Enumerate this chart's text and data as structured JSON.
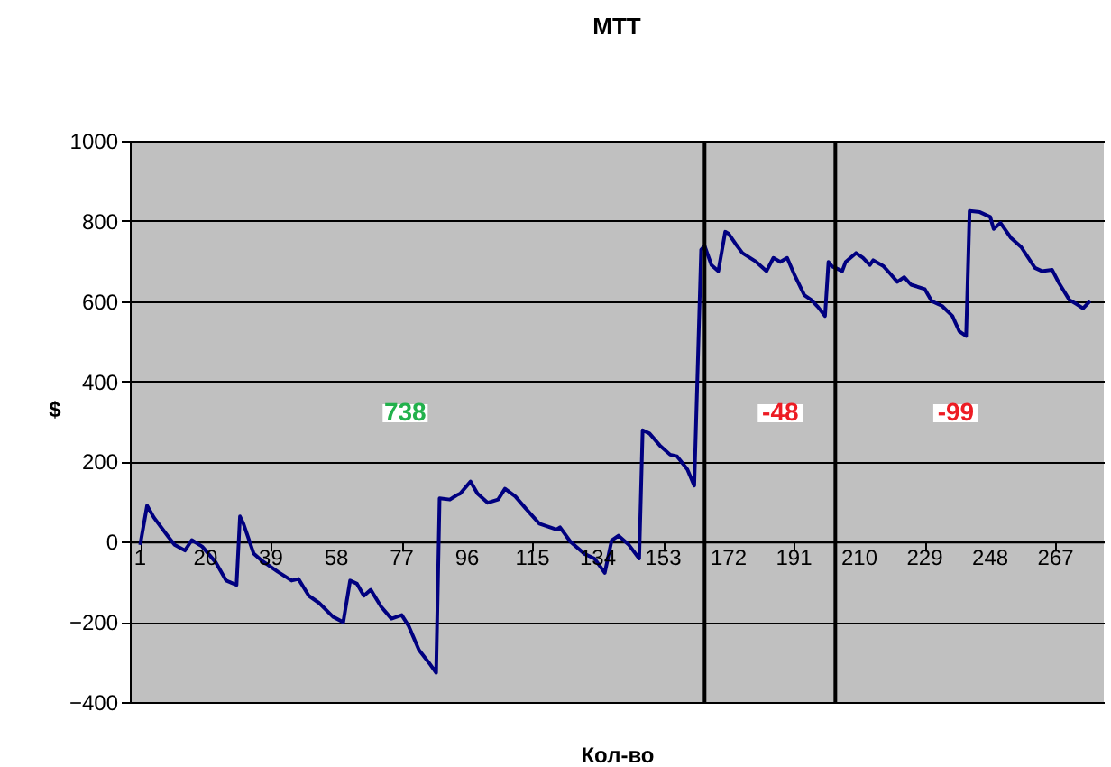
{
  "chart_data": {
    "type": "line",
    "title": "MTT",
    "xlabel": "Кол-во",
    "ylabel": "$",
    "x": [
      1,
      3,
      5,
      9,
      11,
      14,
      16,
      19,
      23,
      26,
      29,
      30,
      31,
      34,
      36,
      41,
      45,
      47,
      50,
      53,
      57,
      60,
      62,
      64,
      66,
      68,
      71,
      74,
      77,
      79,
      82,
      85,
      87,
      88,
      91,
      93,
      94,
      97,
      99,
      102,
      105,
      107,
      110,
      113,
      117,
      122,
      123,
      126,
      130,
      133,
      136,
      138,
      140,
      143,
      146,
      147,
      149,
      152,
      155,
      157,
      160,
      162,
      164,
      165,
      167,
      169,
      171,
      172,
      174,
      176,
      180,
      183,
      185,
      187,
      189,
      191,
      194,
      196,
      198,
      200,
      201,
      202,
      205,
      206,
      209,
      211,
      213,
      214,
      217,
      219,
      221,
      223,
      225,
      229,
      231,
      234,
      237,
      239,
      241,
      242,
      245,
      248,
      249,
      251,
      254,
      257,
      261,
      263,
      266,
      268,
      271,
      273,
      275,
      277
    ],
    "series": [
      {
        "color": "#000080",
        "values": [
          -8,
          90,
          60,
          14,
          -8,
          -22,
          4,
          -12,
          -52,
          -97,
          -108,
          63,
          45,
          -30,
          -45,
          -75,
          -97,
          -93,
          -135,
          -153,
          -187,
          -201,
          -97,
          -105,
          -135,
          -120,
          -162,
          -192,
          -183,
          -210,
          -270,
          -303,
          -327,
          108,
          105,
          116,
          120,
          150,
          120,
          97,
          105,
          132,
          113,
          83,
          45,
          30,
          36,
          0,
          -30,
          -42,
          -78,
          3,
          15,
          -8,
          -42,
          278,
          270,
          240,
          217,
          213,
          180,
          140,
          728,
          738,
          690,
          675,
          773,
          768,
          743,
          720,
          698,
          675,
          708,
          698,
          708,
          668,
          615,
          603,
          585,
          563,
          698,
          687,
          675,
          698,
          720,
          708,
          690,
          702,
          687,
          668,
          648,
          660,
          641,
          630,
          600,
          588,
          563,
          525,
          513,
          825,
          822,
          810,
          780,
          795,
          758,
          735,
          683,
          675,
          678,
          645,
          603,
          593,
          582,
          600
        ]
      }
    ],
    "xlim": [
      -2,
      281
    ],
    "xticks": [
      1,
      20,
      39,
      58,
      77,
      96,
      115,
      134,
      153,
      172,
      191,
      210,
      229,
      248,
      267
    ],
    "ylim": [
      -400,
      1000
    ],
    "yticks": [
      -400,
      -200,
      0,
      200,
      400,
      600,
      800,
      1000
    ],
    "grid": "y",
    "marker": "none",
    "line_style": "solid",
    "ref_lines": [
      {
        "axis": "x",
        "value": 165,
        "color": "#000000"
      },
      {
        "axis": "x",
        "value": 203,
        "color": "#000000"
      }
    ],
    "annotations": [
      {
        "text": "738",
        "x": 78,
        "y": 320
      },
      {
        "text": "-48",
        "x": 187,
        "y": 320
      },
      {
        "text": "-99",
        "x": 238,
        "y": 320
      }
    ]
  }
}
